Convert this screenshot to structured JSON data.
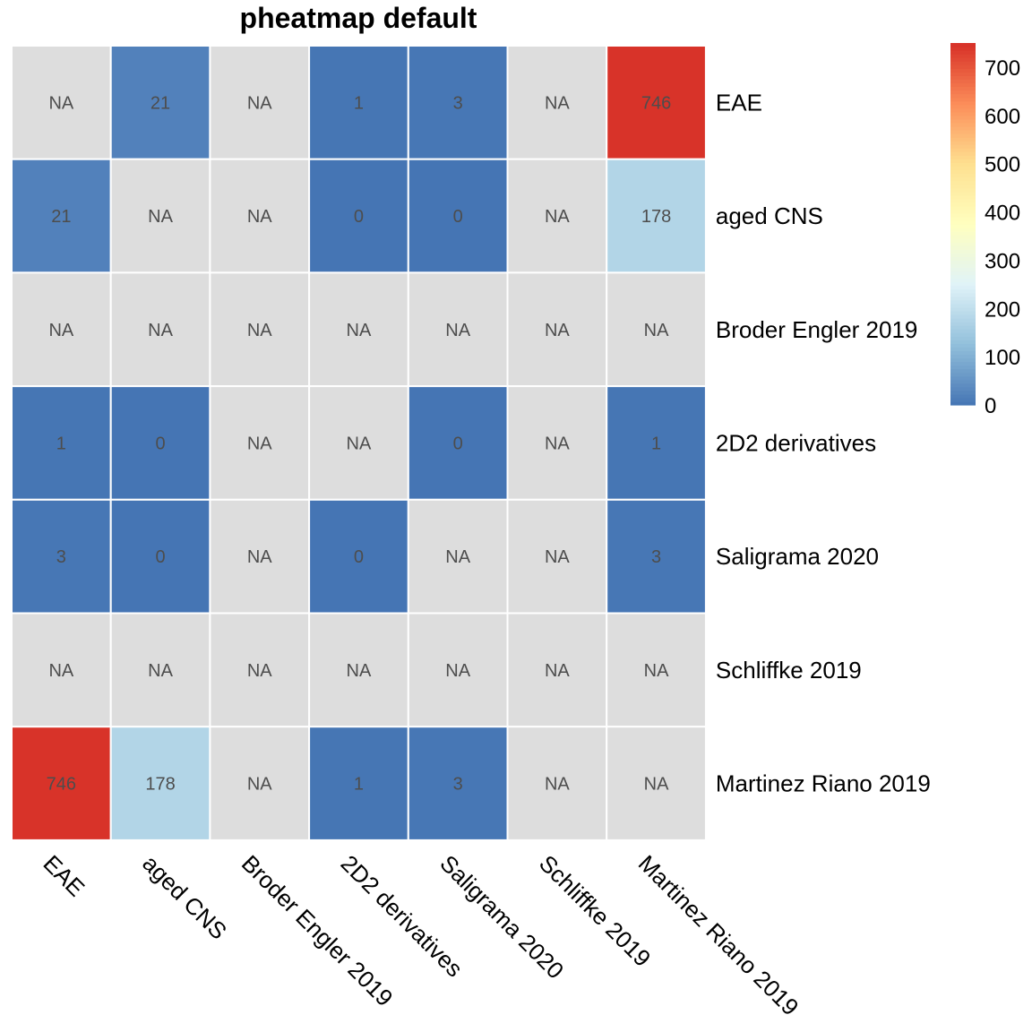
{
  "chart_data": {
    "type": "heatmap",
    "title": "pheatmap default",
    "rows": [
      "EAE",
      "aged CNS",
      "Broder Engler 2019",
      "2D2 derivatives",
      "Saligrama 2020",
      "Schliffke 2019",
      "Martinez Riano 2019"
    ],
    "columns": [
      "EAE",
      "aged CNS",
      "Broder Engler 2019",
      "2D2 derivatives",
      "Saligrama 2020",
      "Schliffke 2019",
      "Martinez Riano 2019"
    ],
    "values": [
      [
        null,
        21,
        null,
        1,
        3,
        null,
        746
      ],
      [
        21,
        null,
        null,
        0,
        0,
        null,
        178
      ],
      [
        null,
        null,
        null,
        null,
        null,
        null,
        null
      ],
      [
        1,
        0,
        null,
        null,
        0,
        null,
        1
      ],
      [
        3,
        0,
        null,
        0,
        null,
        null,
        3
      ],
      [
        null,
        null,
        null,
        null,
        null,
        null,
        null
      ],
      [
        746,
        178,
        null,
        1,
        3,
        null,
        null
      ]
    ],
    "na_label": "NA",
    "color_range": [
      0,
      750
    ],
    "legend": {
      "ticks": [
        0,
        100,
        200,
        300,
        400,
        500,
        600,
        700
      ],
      "placement": "right"
    },
    "colors": {
      "scale": [
        "#4575B4",
        "#91BFDB",
        "#E0F3F8",
        "#FFFFBF",
        "#FEE090",
        "#FC8D59",
        "#D73027"
      ],
      "na_color": "#DDDDDD",
      "cell_border": "#FFFFFF",
      "cell_text": "#4D4D4D"
    },
    "grid": false
  }
}
